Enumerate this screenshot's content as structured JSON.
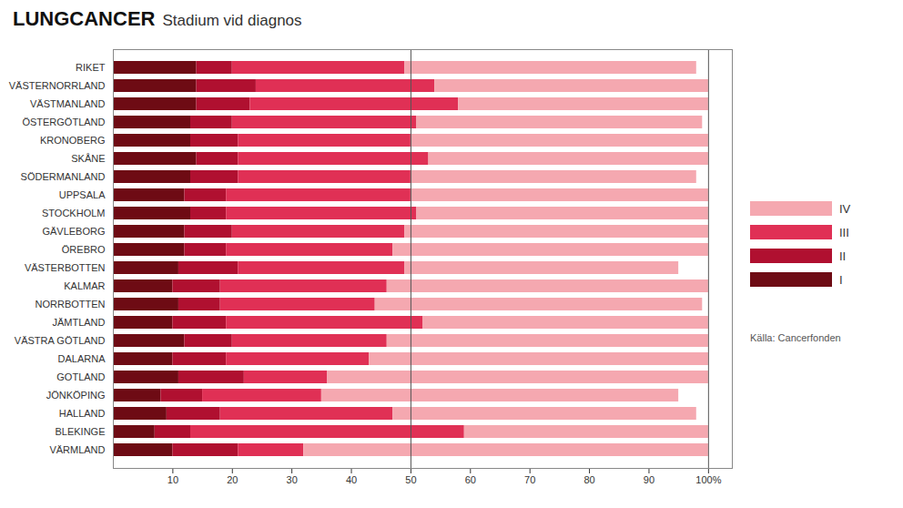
{
  "chart_data": {
    "type": "bar",
    "orientation": "horizontal",
    "stacked": true,
    "title": "LUNGCANCER",
    "subtitle": "Stadium vid diagnos",
    "source": "Källa: Cancerfonden",
    "categories": [
      "VÄRMLAND",
      "BLEKINGE",
      "HALLAND",
      "JÖNKÖPING",
      "GOTLAND",
      "DALARNA",
      "VÄSTRA GÖTLAND",
      "JÄMTLAND",
      "NORRBOTTEN",
      "KALMAR",
      "VÄSTERBOTTEN",
      "ÖREBRO",
      "GÄVLEBORG",
      "STOCKHOLM",
      "UPPSALA",
      "SÖDERMANLAND",
      "SKÅNE",
      "KRONOBERG",
      "ÖSTERGÖTLAND",
      "VÄSTMANLAND",
      "VÄSTERNORRLAND",
      "RIKET"
    ],
    "series": [
      {
        "name": "I",
        "color": "#6e0b14",
        "values": [
          10,
          7,
          9,
          8,
          11,
          10,
          12,
          10,
          11,
          10,
          11,
          12,
          12,
          13,
          12,
          13,
          14,
          13,
          13,
          14,
          14,
          14
        ]
      },
      {
        "name": "II",
        "color": "#b01030",
        "values": [
          11,
          6,
          9,
          7,
          11,
          9,
          8,
          9,
          7,
          8,
          10,
          7,
          8,
          6,
          7,
          8,
          7,
          8,
          7,
          9,
          10,
          6
        ]
      },
      {
        "name": "III",
        "color": "#e03055",
        "values": [
          11,
          46,
          29,
          20,
          14,
          24,
          26,
          33,
          26,
          28,
          28,
          28,
          29,
          32,
          31,
          29,
          32,
          29,
          31,
          35,
          30,
          29
        ]
      },
      {
        "name": "IV",
        "color": "#f5a8b0",
        "values": [
          68,
          41,
          51,
          60,
          64,
          57,
          54,
          48,
          55,
          54,
          46,
          53,
          51,
          49,
          50,
          48,
          47,
          50,
          48,
          42,
          46,
          49
        ]
      }
    ],
    "xlim": [
      0,
      104
    ],
    "xticks": [
      10,
      20,
      30,
      40,
      50,
      60,
      70,
      80,
      90,
      {
        "value": 100,
        "label": "100%"
      }
    ],
    "reference_lines": [
      50,
      100
    ],
    "grid": false,
    "legend": "right"
  }
}
